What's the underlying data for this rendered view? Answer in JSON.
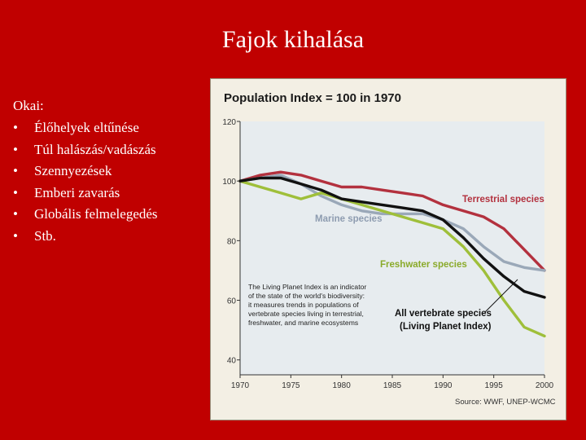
{
  "slide": {
    "title": "Fajok kihalása",
    "bullets_heading": "Okai:",
    "bullet_symbol": "•",
    "bullets": [
      "Élőhelyek eltűnése",
      "Túl halászás/vadászás",
      "Szennyezések",
      "Emberi zavarás",
      "Globális felmelegedés",
      "Stb."
    ]
  },
  "colors": {
    "background": "#c00000",
    "terrestrial": "#b3313e",
    "marine": "#9aa8b8",
    "freshwater": "#9fbf3a",
    "all_vertebrate": "#111111",
    "plot_bg": "#e7ecef"
  },
  "chart_data": {
    "type": "line",
    "title": "Population Index = 100 in 1970",
    "xlabel": "",
    "ylabel": "",
    "x": [
      1970,
      1972,
      1974,
      1976,
      1978,
      1980,
      1982,
      1984,
      1986,
      1988,
      1990,
      1992,
      1994,
      1996,
      1998,
      2000
    ],
    "x_ticks": [
      1970,
      1975,
      1980,
      1985,
      1990,
      1995,
      2000
    ],
    "y_ticks": [
      40,
      60,
      80,
      100,
      120
    ],
    "xlim": [
      1970,
      2000
    ],
    "ylim": [
      35,
      120
    ],
    "series": [
      {
        "name": "Terrestrial species",
        "color": "#b3313e",
        "values": [
          100,
          102,
          103,
          102,
          100,
          98,
          98,
          97,
          96,
          95,
          92,
          90,
          88,
          84,
          77,
          70
        ]
      },
      {
        "name": "Marine species",
        "color": "#9aa8b8",
        "values": [
          100,
          101,
          102,
          99,
          95,
          92,
          90,
          89,
          89,
          89,
          87,
          84,
          78,
          73,
          71,
          70
        ]
      },
      {
        "name": "Freshwater species",
        "color": "#9fbf3a",
        "values": [
          100,
          98,
          96,
          94,
          96,
          94,
          92,
          90,
          88,
          86,
          84,
          78,
          70,
          60,
          51,
          48
        ]
      },
      {
        "name": "All vertebrate species (Living Planet Index)",
        "color": "#111111",
        "values": [
          100,
          101,
          101,
          99,
          97,
          94,
          93,
          92,
          91,
          90,
          87,
          81,
          74,
          68,
          63,
          61
        ]
      }
    ],
    "series_labels": {
      "terrestrial": "Terrestrial species",
      "marine": "Marine species",
      "freshwater": "Freshwater species",
      "all_line1": "All vertebrate species",
      "all_line2": "(Living Planet Index)"
    },
    "annotation_lines": [
      "The Living Planet Index is an indicator",
      "of the state of the world's biodiversity:",
      "it measures trends in populations of",
      "vertebrate species living in terrestrial,",
      "freshwater, and marine ecosystems"
    ],
    "source": "Source: WWF, UNEP-WCMC",
    "grid": false,
    "legend": "inline labels"
  }
}
